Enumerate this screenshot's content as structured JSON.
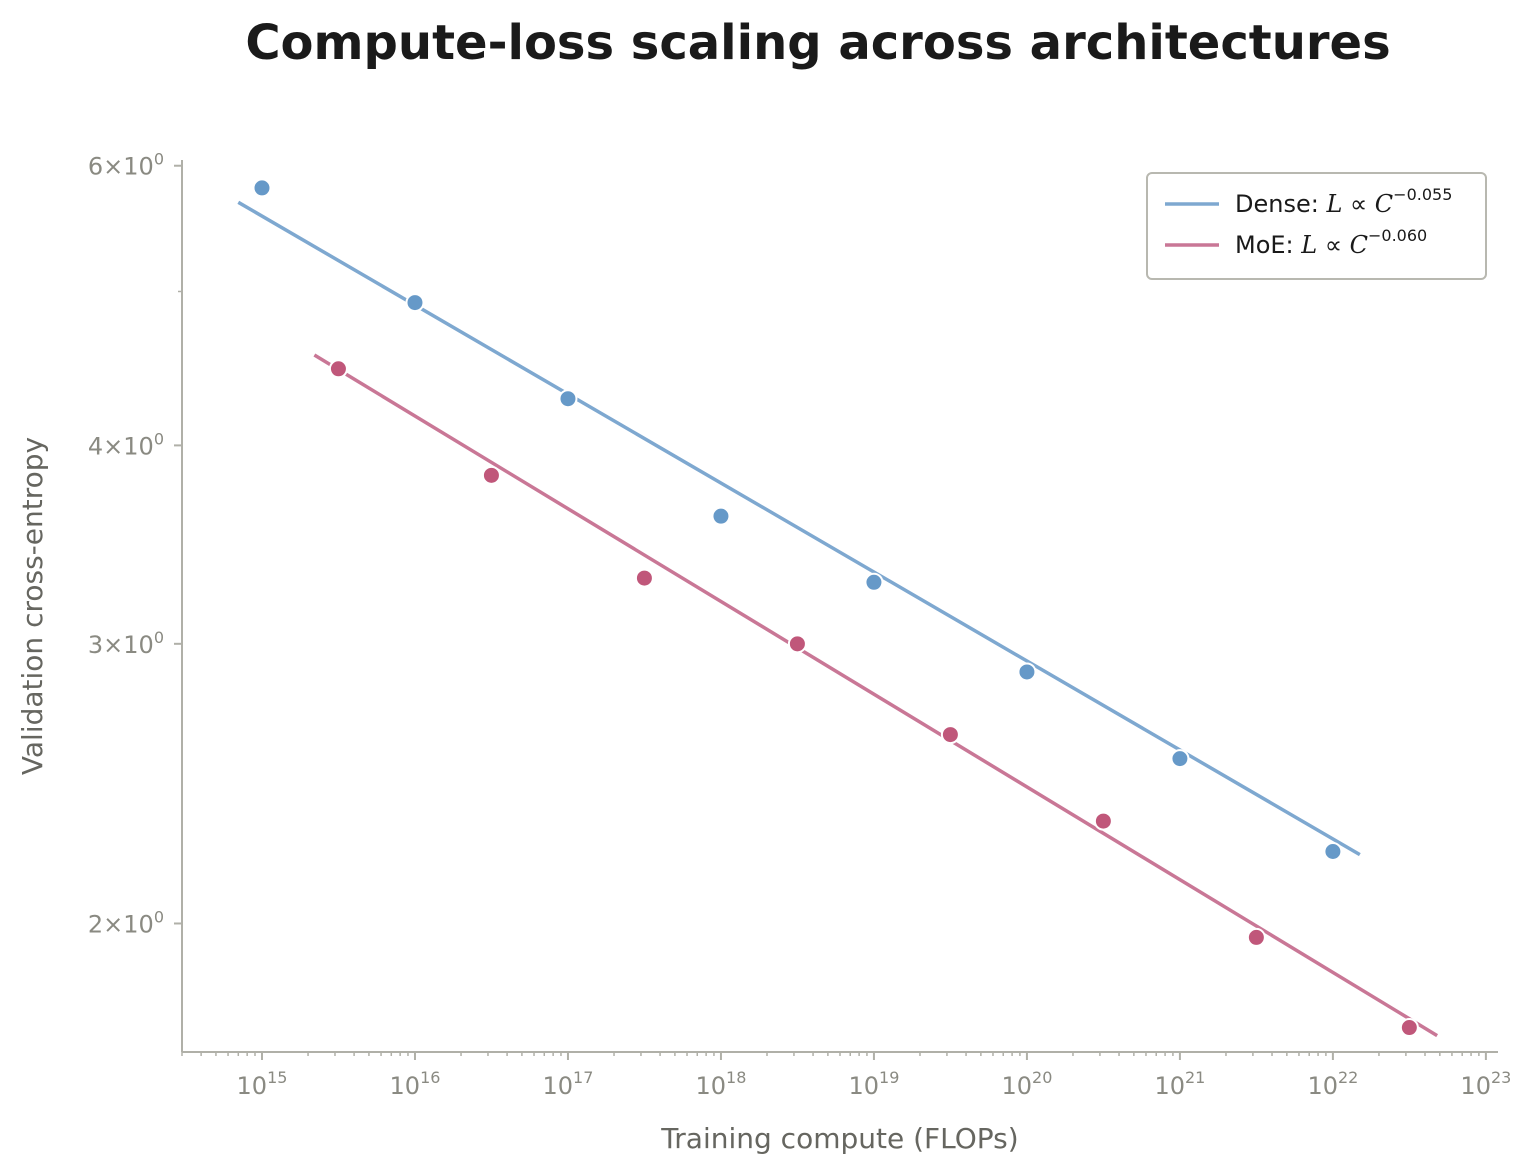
{
  "chart_data": {
    "type": "scatter",
    "title": "Compute-loss scaling across architectures",
    "xlabel": "Training compute (FLOPs)",
    "ylabel": "Validation cross-entropy",
    "xscale": "log",
    "yscale": "log",
    "xlim": [
      300000000000000.0,
      1.2e+23
    ],
    "ylim": [
      1.66,
      6.05
    ],
    "x_ticks": [
      {
        "base": "10",
        "exp": "15",
        "value": 1000000000000000.0
      },
      {
        "base": "10",
        "exp": "16",
        "value": 1e+16
      },
      {
        "base": "10",
        "exp": "17",
        "value": 1e+17
      },
      {
        "base": "10",
        "exp": "18",
        "value": 1e+18
      },
      {
        "base": "10",
        "exp": "19",
        "value": 1e+19
      },
      {
        "base": "10",
        "exp": "20",
        "value": 1e+20
      },
      {
        "base": "10",
        "exp": "21",
        "value": 1e+21
      },
      {
        "base": "10",
        "exp": "22",
        "value": 1e+22
      },
      {
        "base": "10",
        "exp": "23",
        "value": 1e+23
      }
    ],
    "y_ticks": [
      {
        "mant": "6",
        "exp": "0",
        "value": 6
      },
      {
        "mant": "4",
        "exp": "0",
        "value": 4
      },
      {
        "mant": "3",
        "exp": "0",
        "value": 3
      },
      {
        "mant": "2",
        "exp": "0",
        "value": 2
      }
    ],
    "y_minor_ticks": [
      5
    ],
    "grid": false,
    "legend_placement": "top-right",
    "series": [
      {
        "name": "Dense",
        "legend_prefix": "Dense: ",
        "legend_exponent": "−0.055",
        "color": "#6699c8",
        "line_color": "#7ea8d0",
        "points": [
          {
            "x": 1000000000000000.0,
            "y": 5.81
          },
          {
            "x": 1e+16,
            "y": 4.92
          },
          {
            "x": 1e+17,
            "y": 4.28
          },
          {
            "x": 1e+18,
            "y": 3.61
          },
          {
            "x": 1e+19,
            "y": 3.28
          },
          {
            "x": 1e+20,
            "y": 2.88
          },
          {
            "x": 1e+21,
            "y": 2.54
          },
          {
            "x": 1e+22,
            "y": 2.22
          }
        ],
        "fit": {
          "x": [
            700000000000000.0,
            1.5e+22
          ],
          "y": [
            5.69,
            2.21
          ]
        }
      },
      {
        "name": "MoE",
        "legend_prefix": "MoE: ",
        "legend_exponent": "−0.060",
        "color": "#c0577a",
        "line_color": "#c97796",
        "points": [
          {
            "x": 3160000000000000.0,
            "y": 4.47
          },
          {
            "x": 3.16e+16,
            "y": 3.83
          },
          {
            "x": 3.16e+17,
            "y": 3.3
          },
          {
            "x": 3.16e+18,
            "y": 3.0
          },
          {
            "x": 3.16e+19,
            "y": 2.63
          },
          {
            "x": 3.16e+20,
            "y": 2.32
          },
          {
            "x": 3.16e+21,
            "y": 1.96
          },
          {
            "x": 3.16e+22,
            "y": 1.72
          }
        ],
        "fit": {
          "x": [
            2200000000000000.0,
            4.8e+22
          ],
          "y": [
            4.56,
            1.7
          ]
        }
      }
    ]
  }
}
